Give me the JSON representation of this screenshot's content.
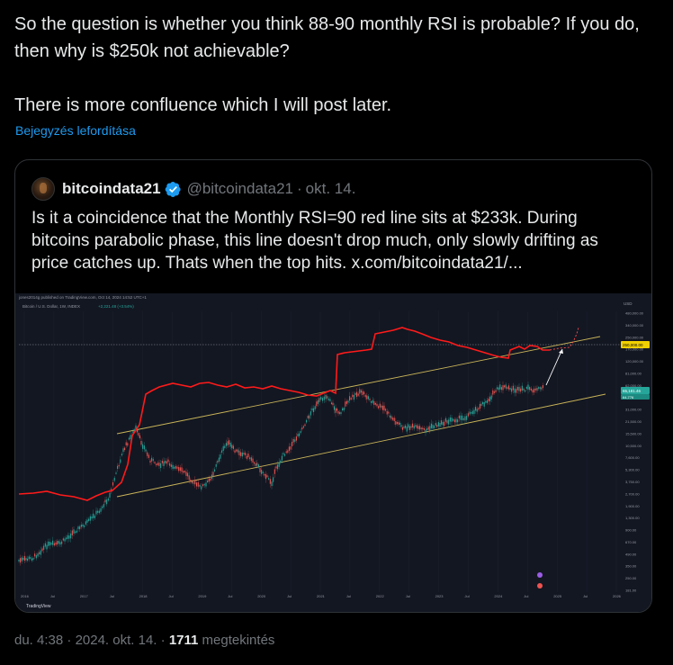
{
  "tweet": {
    "text": "So the question is whether you think 88-90 monthly RSI is probable? If you do, then why is $250k not achievable?\n\nThere is more confluence which I will post later.",
    "translate_link": "Bejegyzés lefordítása"
  },
  "quote": {
    "name": "bitcoindata21",
    "handle": "@bitcoindata21",
    "separator": "·",
    "date": "okt. 14.",
    "text": "Is it a coincidence that the Monthly RSI=90 red line sits at $233k. During bitcoins parabolic phase, this line doesn't drop much, only slowly drifting as price catches up. Thats when the top hits.  x.com/bitcoindata21/...",
    "avatar_icon": "bitcoin-avatar-icon",
    "verified_icon": "verified-badge-icon"
  },
  "chart": {
    "header": "jones2014g published on TradingView.com, Oct 14, 2024 14:52 UTC+1",
    "symbol": "Bitcoin / U.S. Dollar, 1W, INDEX",
    "symbol_change": "+2,221.48 (+3.54%)",
    "price_label_current": "65,181.46",
    "price_label_sub": "64,776",
    "price_label_level": "250,000.00",
    "axis_currency": "USD",
    "watermark": "TradingView",
    "y_ticks": [
      "480,000.00",
      "340,000.00",
      "250,000.00",
      "170,000.00",
      "120,000.00",
      "81,000.00",
      "62,000.00",
      "41,500.00",
      "31,000.00",
      "21,500.00",
      "15,500.00",
      "10,500.00",
      "7,600.00",
      "5,300.00",
      "3,750.00",
      "2,700.00",
      "1,900.00",
      "1,300.00",
      "900.00",
      "670.00",
      "490.00",
      "350.00",
      "250.00",
      "181.00"
    ],
    "x_ticks": [
      "2016",
      "Jul",
      "2017",
      "Jul",
      "2018",
      "Jul",
      "2019",
      "Jul",
      "2020",
      "Jul",
      "2021",
      "Jul",
      "2022",
      "Jul",
      "2023",
      "Jul",
      "2024",
      "Jul",
      "2025",
      "Jul",
      "2026"
    ],
    "colors": {
      "rsi_line": "#ff1a1a",
      "channel": "#c9b458",
      "candle_up": "#26a69a",
      "candle_down": "#ef5350",
      "level_label": "#f0d000"
    }
  },
  "footer": {
    "time": "du. 4:38",
    "sep1": "·",
    "date": "2024. okt. 14.",
    "sep2": "·",
    "views": "1711",
    "views_label": "megtekintés"
  }
}
